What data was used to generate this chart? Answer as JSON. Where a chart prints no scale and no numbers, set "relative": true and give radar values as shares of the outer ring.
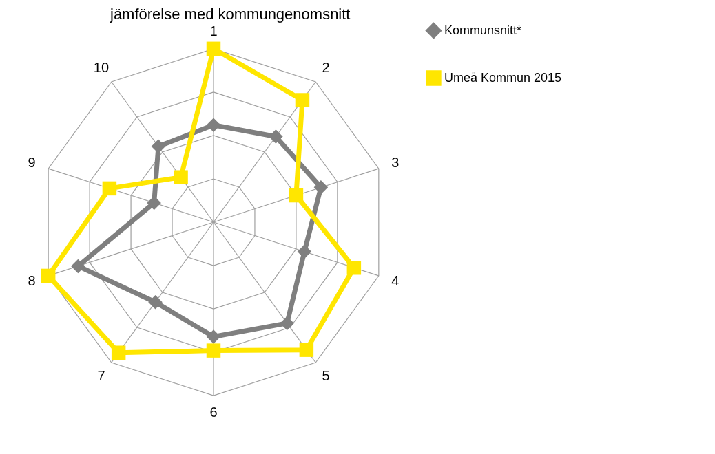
{
  "chart_data": {
    "type": "radar",
    "title": "jämförelse med kommungenomsnitt",
    "relative": true,
    "grid": true,
    "legend": "right",
    "categories": [
      "1",
      "2",
      "3",
      "4",
      "5",
      "6",
      "7",
      "8",
      "9",
      "10"
    ],
    "series": [
      {
        "name": "Kommunsnitt*",
        "color": "#7f7f7f",
        "marker": "diamond",
        "values": [
          0.56,
          0.61,
          0.65,
          0.55,
          0.72,
          0.66,
          0.57,
          0.82,
          0.36,
          0.54
        ]
      },
      {
        "name": "Umeå Kommun 2015",
        "color": "#ffe600",
        "marker": "square",
        "values": [
          1.0,
          0.87,
          0.5,
          0.85,
          0.91,
          0.74,
          0.93,
          1.0,
          0.63,
          0.32
        ]
      }
    ]
  }
}
